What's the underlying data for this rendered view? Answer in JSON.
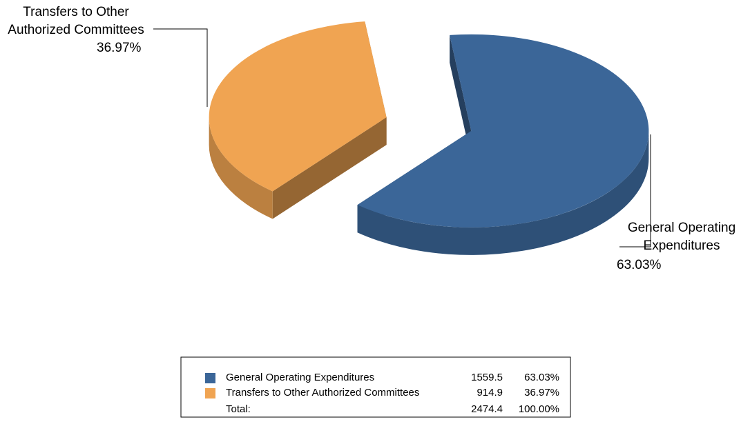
{
  "chart_data": {
    "type": "pie",
    "categories": [
      "General Operating Expenditures",
      "Transfers to Other Authorized Committees"
    ],
    "values": [
      63.03,
      36.97
    ],
    "value_labels": [
      "63.03%",
      "36.97%"
    ],
    "amounts": [
      1559.5,
      914.9
    ],
    "colors": [
      "#3b6698",
      "#f0a452"
    ],
    "total_label": "Total:",
    "total_amount": 2474.4,
    "total_percent_label": "100.00%"
  }
}
